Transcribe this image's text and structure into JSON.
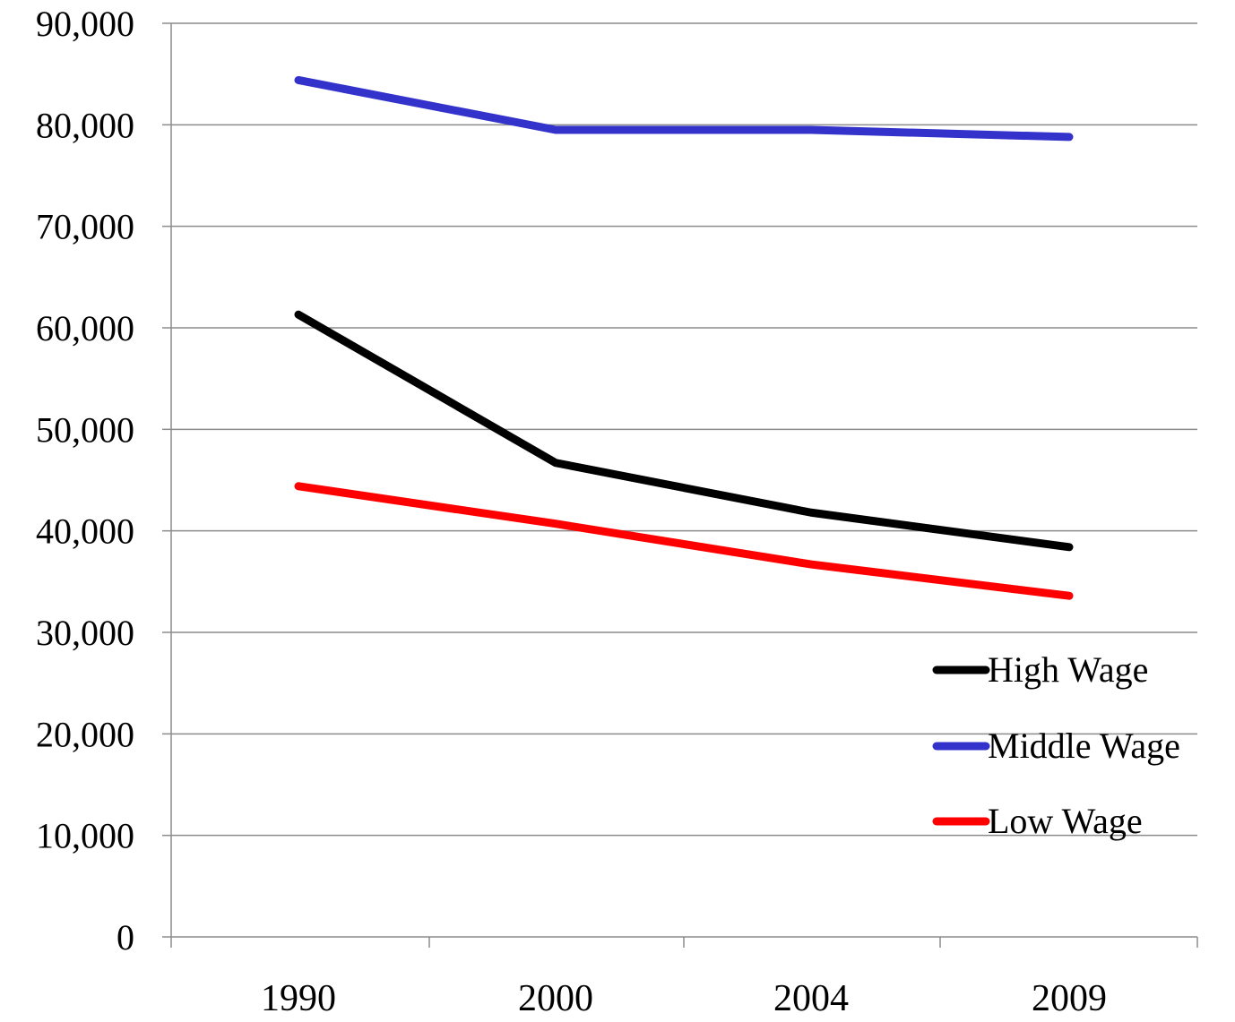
{
  "chart_data": {
    "type": "line",
    "categories": [
      "1990",
      "2000",
      "2004",
      "2009"
    ],
    "series": [
      {
        "name": "High Wage",
        "color": "#000000",
        "values": [
          61300,
          46700,
          41800,
          38400
        ]
      },
      {
        "name": "Middle Wage",
        "color": "#3333cc",
        "values": [
          84400,
          79500,
          79500,
          78800
        ]
      },
      {
        "name": "Low Wage",
        "color": "#ff0000",
        "values": [
          44400,
          40700,
          36700,
          33600
        ]
      }
    ],
    "ylim": [
      0,
      90000
    ],
    "yticks": [
      "0",
      "10,000",
      "20,000",
      "30,000",
      "40,000",
      "50,000",
      "60,000",
      "70,000",
      "80,000",
      "90,000"
    ],
    "grid": true,
    "legend_position": "bottom-right",
    "title": "",
    "xlabel": "",
    "ylabel": ""
  }
}
